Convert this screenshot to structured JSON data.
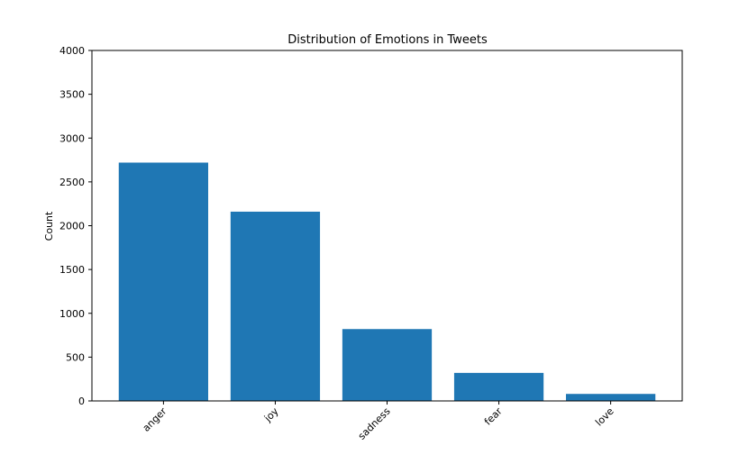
{
  "chart_data": {
    "type": "bar",
    "title": "Distribution of Emotions in Tweets",
    "xlabel": "",
    "ylabel": "Count",
    "categories": [
      "anger",
      "joy",
      "sadness",
      "fear",
      "love"
    ],
    "values": [
      2720,
      2160,
      820,
      320,
      80
    ],
    "ylim": [
      0,
      4000
    ],
    "yticks": [
      0,
      500,
      1000,
      1500,
      2000,
      2500,
      3000,
      3500,
      4000
    ],
    "grid": false,
    "legend": "none",
    "bar_color": "#1f77b4",
    "xtick_rotation": 45
  }
}
